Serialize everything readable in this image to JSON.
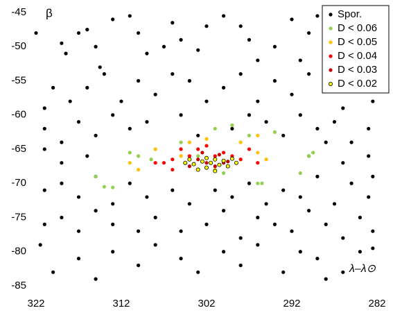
{
  "chart_data": {
    "type": "scatter",
    "x_label": "λ–λ⊙",
    "y_label": "β",
    "xlim": [
      322,
      282
    ],
    "xticks": [
      322,
      312,
      302,
      292,
      282
    ],
    "ylim": [
      -85,
      -45
    ],
    "yticks": [
      -45,
      -50,
      -55,
      -60,
      -65,
      -70,
      -75,
      -80,
      -85
    ],
    "grid": false,
    "legend": "upper right",
    "series": [
      {
        "name": "Spor.",
        "color": "#000000",
        "x": [
          322,
          319,
          318.5,
          317,
          316,
          315,
          314.5,
          313,
          311,
          310,
          309,
          307,
          306,
          305,
          303,
          302,
          300,
          298,
          297,
          296,
          294,
          292,
          291,
          290,
          289,
          287,
          285,
          283,
          282.5,
          320,
          321,
          318,
          316,
          314,
          312,
          310,
          308,
          306,
          304,
          302,
          300,
          298,
          296,
          294,
          292,
          290,
          288,
          286,
          284,
          282.5,
          321,
          319,
          317,
          315,
          313,
          311,
          309,
          305,
          303,
          299,
          297,
          295,
          293,
          291,
          289,
          287,
          285,
          283,
          321,
          319,
          316,
          290,
          288,
          286,
          283,
          282.5,
          321,
          319,
          317,
          315,
          313,
          311,
          309,
          306,
          304,
          301,
          299,
          297,
          295,
          293,
          291,
          289,
          287,
          285,
          283,
          321,
          319,
          317,
          315,
          313,
          310,
          308,
          305,
          302,
          300,
          298,
          296,
          294,
          292,
          290,
          288,
          286,
          284,
          282.5,
          321.5,
          320,
          317,
          315,
          313,
          310,
          308,
          305,
          303,
          300,
          298,
          296,
          293,
          291,
          289,
          286,
          284,
          282.5,
          288
        ],
        "y": [
          -48,
          -49.5,
          -51,
          -48,
          -47.5,
          -50,
          -53,
          -46,
          -45.5,
          -48,
          -51,
          -50,
          -46.5,
          -49,
          -50.5,
          -47,
          -45.5,
          -47,
          -49,
          -52,
          -50,
          -46,
          -52,
          -48,
          -45.5,
          -50,
          -47,
          -46,
          -52,
          -56,
          -59,
          -58,
          -56,
          -54,
          -58,
          -55,
          -57,
          -54,
          -55,
          -58,
          -56,
          -54,
          -58,
          -55,
          -57,
          -54,
          -56,
          -59,
          -55,
          -58,
          -62,
          -64,
          -61,
          -63,
          -60,
          -62,
          -61,
          -60,
          -63,
          -62,
          -60,
          -61,
          -63,
          -60,
          -62,
          -61,
          -64,
          -62,
          -65,
          -67,
          -66,
          -66,
          -64,
          -67,
          -66,
          -69,
          -71,
          -70,
          -72,
          -69,
          -73,
          -70,
          -72,
          -71,
          -73,
          -71,
          -72,
          -70,
          -73,
          -71,
          -72,
          -69,
          -73,
          -70,
          -72,
          -76,
          -75,
          -77,
          -74,
          -76,
          -77,
          -75,
          -77,
          -76,
          -74,
          -78,
          -75,
          -76,
          -77,
          -74,
          -76,
          -78,
          -75,
          -77,
          -79,
          -83,
          -81,
          -84,
          -80,
          -82,
          -79,
          -81,
          -83,
          -80,
          -82,
          -79,
          -83,
          -80,
          -81,
          -83,
          -80,
          -79.5,
          -84
        ]
      },
      {
        "name": "D < 0.06",
        "color": "#92d050",
        "x": [
          315,
          314,
          313,
          311,
          310,
          308.5,
          305,
          303,
          301,
          299,
          297,
          296,
          295.5,
          294,
          291,
          290,
          289.5,
          300,
          303
        ],
        "y": [
          -69,
          -70.5,
          -70.6,
          -65.5,
          -66,
          -66.5,
          -64,
          -66,
          -62,
          -61.5,
          -63,
          -70,
          -70,
          -62.5,
          -68.5,
          -66,
          -65.5,
          -68.5,
          -68
        ]
      },
      {
        "name": "D < 0.05",
        "color": "#ffc000",
        "x": [
          311,
          310,
          304,
          302,
          298,
          296,
          295,
          296,
          301,
          305,
          308
        ],
        "y": [
          -67,
          -68,
          -64,
          -63.5,
          -64,
          -65.5,
          -66.5,
          -63,
          -68,
          -66,
          -65
        ]
      },
      {
        "name": "D < 0.04",
        "color": "#ff0000",
        "x": [
          308,
          306,
          305,
          304,
          303,
          302,
          301,
          300,
          299,
          298,
          297,
          296,
          307,
          306
        ],
        "y": [
          -67,
          -66.5,
          -65,
          -66,
          -65,
          -64.5,
          -66,
          -65.5,
          -66,
          -66.5,
          -65,
          -67,
          -67,
          -68
        ]
      },
      {
        "name": "D < 0.03",
        "color": "#c00000",
        "x": [
          304,
          303,
          302,
          301,
          300,
          299.5,
          302.5,
          300.5
        ],
        "y": [
          -67.5,
          -66.5,
          -67,
          -67.5,
          -67,
          -66.8,
          -65.5,
          -65.8
        ]
      },
      {
        "name": "D < 0.02",
        "color": "#ffff00",
        "edgecolor": "#000000",
        "x": [
          304.5,
          304,
          303.5,
          303,
          302.5,
          302,
          301.5,
          301,
          300.5,
          300,
          299.5,
          299,
          298.5,
          302,
          301
        ],
        "y": [
          -67,
          -66.5,
          -67.2,
          -68,
          -66.8,
          -66.3,
          -67,
          -66.5,
          -67.3,
          -66.7,
          -67.5,
          -66.4,
          -67,
          -67.7,
          -68.2
        ]
      }
    ]
  }
}
